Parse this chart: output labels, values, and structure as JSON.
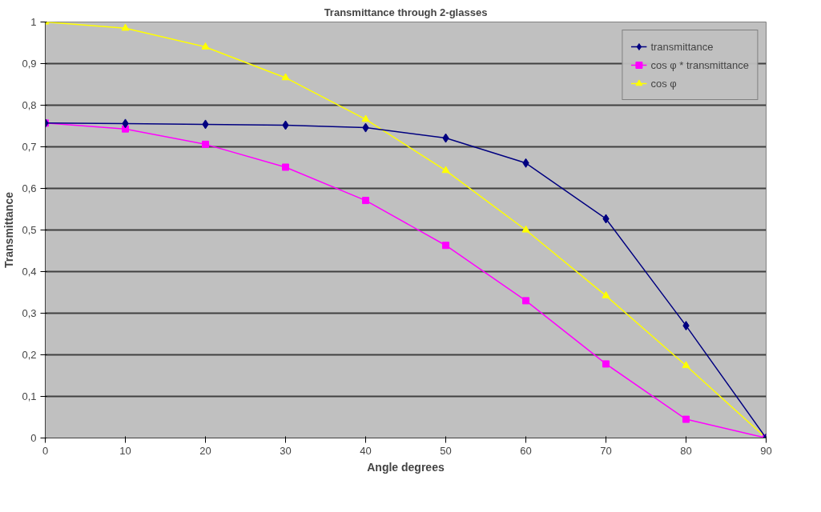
{
  "chart_data": {
    "type": "line",
    "title": "Transmittance through 2-glasses",
    "xlabel": "Angle degrees",
    "ylabel": "Transmittance",
    "x": [
      0,
      10,
      20,
      30,
      40,
      50,
      60,
      70,
      80,
      90
    ],
    "series": [
      {
        "name": "transmittance",
        "color": "#000080",
        "marker": "diamond",
        "values": [
          0.757,
          0.756,
          0.754,
          0.752,
          0.746,
          0.721,
          0.661,
          0.527,
          0.27,
          0
        ]
      },
      {
        "name": "cos φ * transmittance",
        "color": "#ff00ff",
        "marker": "square",
        "values": [
          0.757,
          0.743,
          0.706,
          0.651,
          0.571,
          0.463,
          0.33,
          0.178,
          0.045,
          0
        ]
      },
      {
        "name": "cos φ",
        "color": "#ffff00",
        "marker": "triangle",
        "values": [
          1,
          0.985,
          0.94,
          0.866,
          0.766,
          0.643,
          0.5,
          0.342,
          0.174,
          0
        ]
      }
    ],
    "xlim": [
      0,
      90
    ],
    "xticks": [
      0,
      10,
      20,
      30,
      40,
      50,
      60,
      70,
      80,
      90
    ],
    "ylim": [
      0,
      1
    ],
    "yticks": [
      0,
      {
        "value": 0.1,
        "label": "0,1"
      },
      {
        "value": 0.2,
        "label": "0,2"
      },
      {
        "value": 0.3,
        "label": "0,3"
      },
      {
        "value": 0.4,
        "label": "0,4"
      },
      {
        "value": 0.5,
        "label": "0,5"
      },
      {
        "value": 0.6,
        "label": "0,6"
      },
      {
        "value": 0.7,
        "label": "0,7"
      },
      {
        "value": 0.8,
        "label": "0,8"
      },
      {
        "value": 0.9,
        "label": "0,9"
      },
      1
    ],
    "grid": "y",
    "legend": "top right",
    "line_style": "solid"
  }
}
